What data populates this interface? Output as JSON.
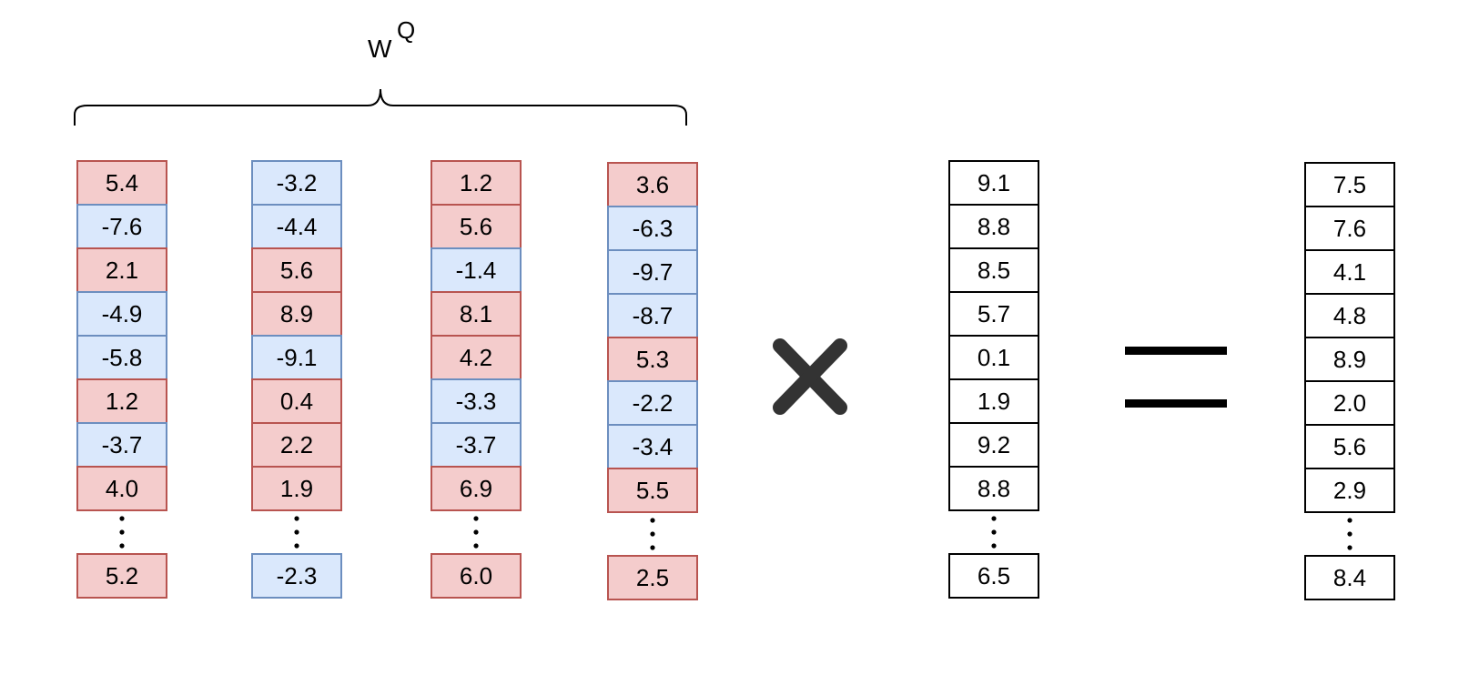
{
  "title": {
    "base": "W",
    "superscript": "Q"
  },
  "colors": {
    "positive_fill": "#f4cccc",
    "positive_stroke": "#b85450",
    "negative_fill": "#dae8fc",
    "negative_stroke": "#6c8ebf",
    "plain_fill": "#ffffff",
    "plain_stroke": "#000000"
  },
  "operators": {
    "multiply": "multiply-sign",
    "equals": "equals-sign"
  },
  "matrix_columns": [
    {
      "values": [
        "5.4",
        "-7.6",
        "2.1",
        "-4.9",
        "-5.8",
        "1.2",
        "-3.7",
        "4.0"
      ],
      "last": "5.2"
    },
    {
      "values": [
        "-3.2",
        "-4.4",
        "5.6",
        "8.9",
        "-9.1",
        "0.4",
        "2.2",
        "1.9"
      ],
      "last": "-2.3"
    },
    {
      "values": [
        "1.2",
        "5.6",
        "-1.4",
        "8.1",
        "4.2",
        "-3.3",
        "-3.7",
        "6.9"
      ],
      "last": "6.0"
    },
    {
      "values": [
        "3.6",
        "-6.3",
        "-9.7",
        "-8.7",
        "5.3",
        "-2.2",
        "-3.4",
        "5.5"
      ],
      "last": "2.5"
    }
  ],
  "input_vector": {
    "values": [
      "9.1",
      "8.8",
      "8.5",
      "5.7",
      "0.1",
      "1.9",
      "9.2",
      "8.8"
    ],
    "last": "6.5"
  },
  "output_vector": {
    "values": [
      "7.5",
      "7.6",
      "4.1",
      "4.8",
      "8.9",
      "2.0",
      "5.6",
      "2.9"
    ],
    "last": "8.4"
  }
}
